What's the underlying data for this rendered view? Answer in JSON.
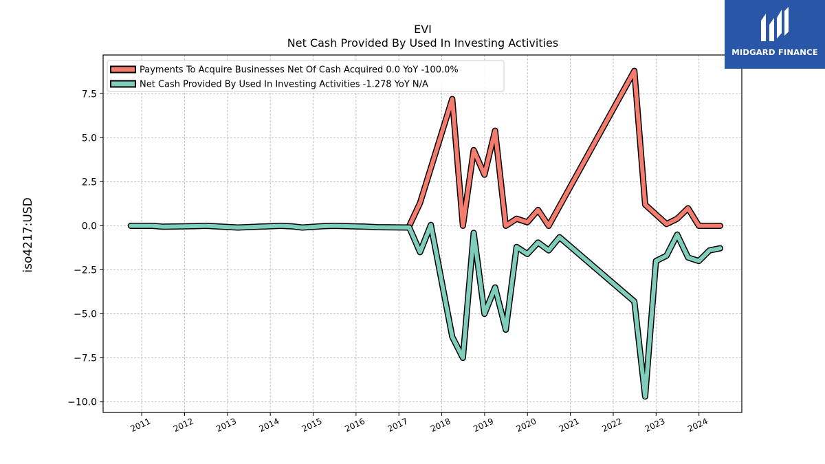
{
  "brand": {
    "name": "MIDGARD FINANCE",
    "bg_color": "#2a56a8"
  },
  "chart_data": {
    "type": "line",
    "title": "EVI",
    "subtitle": "Net Cash Provided By Used In Investing Activities",
    "xlabel": "",
    "ylabel": "iso4217:USD",
    "xlim": [
      2010.1,
      2025.0
    ],
    "ylim": [
      -10.6,
      9.7
    ],
    "x_ticks": [
      2011,
      2012,
      2013,
      2014,
      2015,
      2016,
      2017,
      2018,
      2019,
      2020,
      2021,
      2022,
      2023,
      2024
    ],
    "y_ticks": [
      {
        "value": 7.5,
        "label": "7.5"
      },
      {
        "value": 5.0,
        "label": "5.0"
      },
      {
        "value": 2.5,
        "label": "2.5"
      },
      {
        "value": 0.0,
        "label": "0.0"
      },
      {
        "value": -2.5,
        "label": "−2.5"
      },
      {
        "value": -5.0,
        "label": "−5.0"
      },
      {
        "value": -7.5,
        "label": "−7.5"
      },
      {
        "value": -10.0,
        "label": "−10.0"
      }
    ],
    "grid": true,
    "legend_position": "top-left",
    "series": [
      {
        "name": "Payments To Acquire Businesses Net Of Cash Acquired  0.0 YoY -100.0%",
        "color": "#f47c6e",
        "x": [
          "2017-03-31",
          "2017-06-30",
          "2018-03-31",
          "2018-06-30",
          "2018-09-30",
          "2018-12-31",
          "2019-03-31",
          "2019-06-30",
          "2019-09-30",
          "2019-12-31",
          "2020-03-31",
          "2020-06-30",
          "2022-06-30",
          "2022-09-30",
          "2023-03-31",
          "2023-06-30",
          "2023-09-30",
          "2023-12-31",
          "2024-03-31",
          "2024-06-30"
        ],
        "values": [
          0.0,
          1.3,
          7.2,
          0.0,
          4.3,
          2.9,
          5.4,
          0.0,
          0.4,
          0.2,
          0.9,
          0.0,
          8.8,
          1.2,
          0.1,
          0.4,
          1.0,
          0.0,
          0.0,
          0.0
        ]
      },
      {
        "name": "Net Cash Provided By Used In Investing Activities  -1.278 YoY N/A",
        "color": "#7fcdbb",
        "x": [
          "2010-09-30",
          "2011-03-31",
          "2011-06-30",
          "2012-03-31",
          "2012-06-30",
          "2013-03-31",
          "2014-03-31",
          "2014-06-30",
          "2014-09-30",
          "2015-03-31",
          "2015-06-30",
          "2016-03-31",
          "2016-06-30",
          "2017-03-31",
          "2017-06-30",
          "2017-09-30",
          "2018-03-31",
          "2018-06-30",
          "2018-09-30",
          "2018-12-31",
          "2019-03-31",
          "2019-06-30",
          "2019-09-30",
          "2019-12-31",
          "2020-03-31",
          "2020-06-30",
          "2020-09-30",
          "2022-06-30",
          "2022-09-30",
          "2022-12-31",
          "2023-03-31",
          "2023-06-30",
          "2023-09-30",
          "2023-12-31",
          "2024-03-31",
          "2024-06-30"
        ],
        "values": [
          0.0,
          0.0,
          -0.05,
          -0.02,
          0.0,
          -0.1,
          0.0,
          -0.03,
          -0.1,
          -0.02,
          0.0,
          -0.05,
          -0.08,
          -0.1,
          -1.5,
          0.05,
          -6.3,
          -7.5,
          -0.4,
          -5.0,
          -3.5,
          -5.9,
          -1.2,
          -1.6,
          -0.95,
          -1.4,
          -0.65,
          -4.3,
          -9.7,
          -2.0,
          -1.7,
          -0.5,
          -1.8,
          -2.0,
          -1.4,
          -1.278
        ]
      }
    ]
  }
}
